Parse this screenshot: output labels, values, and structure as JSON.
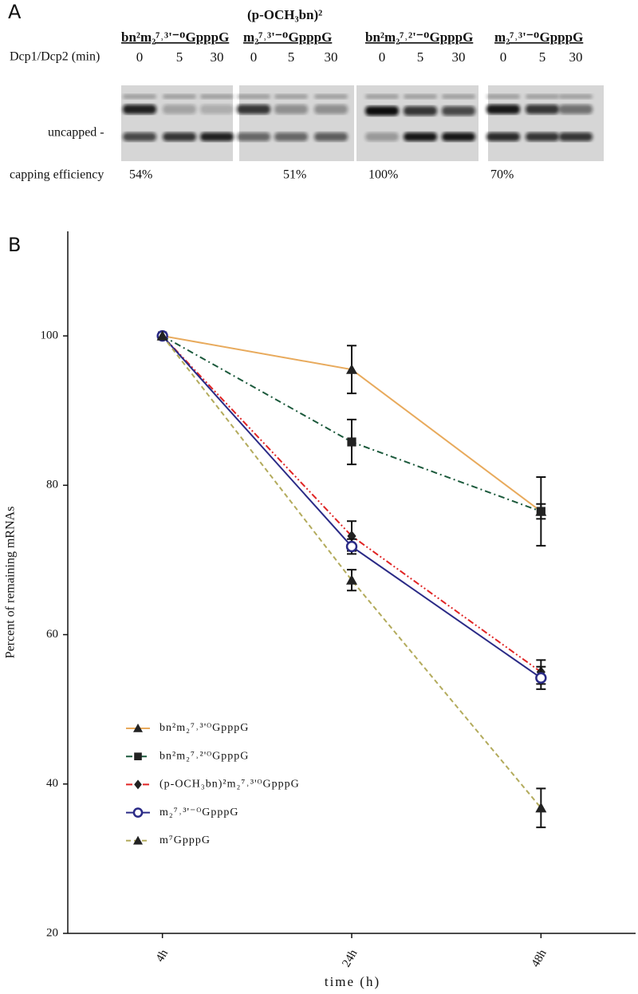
{
  "panel_a": {
    "label": "A",
    "groups": [
      {
        "title_lines": [
          "bn²m₂⁷˒³'⁻ᴼGpppG"
        ],
        "lanes": [
          "0",
          "5",
          "30"
        ]
      },
      {
        "title_lines": [
          "(p-OCH₃bn)²",
          "m₂⁷˒³'⁻ᴼGpppG"
        ],
        "lanes": [
          "0",
          "5",
          "30"
        ]
      },
      {
        "title_lines": [
          "bn²m₂⁷˒²'⁻ᴼGpppG"
        ],
        "lanes": [
          "0",
          "5",
          "30"
        ]
      },
      {
        "title_lines": [
          "m₂⁷˒³'⁻ᴼGpppG"
        ],
        "lanes": [
          "0",
          "5",
          "30"
        ]
      }
    ],
    "row_label": "Dcp1/Dcp2 (min)",
    "band_label": "uncapped -",
    "efficiency_label": "capping efficiency",
    "efficiencies": [
      "54%",
      "51%",
      "100%",
      "70%"
    ]
  },
  "chart_data": {
    "type": "line",
    "panel_label": "B",
    "x_label": "time (h)",
    "y_label": "Percent of remaining mRNAs",
    "categories": [
      "4h",
      "24h",
      "48h"
    ],
    "ylim": [
      20,
      114
    ],
    "yticks": [
      20,
      40,
      60,
      80,
      100
    ],
    "series": [
      {
        "name": "bn²m₂⁷˒³'ᴼGpppG",
        "color": "#e8aa5c",
        "marker": "triangle",
        "linestyle": "solid",
        "values": [
          100,
          95.5,
          76.5
        ],
        "errors": [
          0,
          3.2,
          1.0
        ]
      },
      {
        "name": "bn²m₂⁷˒²'ᴼGpppG",
        "color": "#1c5a3c",
        "marker": "square",
        "linestyle": "dashdot",
        "values": [
          100,
          85.8,
          76.5
        ],
        "errors": [
          0,
          3.0,
          4.6
        ]
      },
      {
        "name": "(p-OCH₃bn)²m₂⁷˒³'ᴼGpppG",
        "color": "#e02424",
        "marker": "diamond",
        "linestyle": "dashdotdot",
        "values": [
          100,
          73.2,
          55.0
        ],
        "errors": [
          0,
          2.0,
          1.6
        ]
      },
      {
        "name": "m₂⁷˒³'⁻ᴼGpppG",
        "color": "#2a2a86",
        "marker": "circle",
        "linestyle": "solid",
        "values": [
          100,
          71.8,
          54.2
        ],
        "errors": [
          0,
          1.0,
          1.5
        ]
      },
      {
        "name": "m⁷GpppG",
        "color": "#b3ab5c",
        "marker": "triangle",
        "linestyle": "dashed",
        "values": [
          100,
          67.3,
          36.8
        ],
        "errors": [
          0,
          1.4,
          2.6
        ]
      }
    ]
  }
}
